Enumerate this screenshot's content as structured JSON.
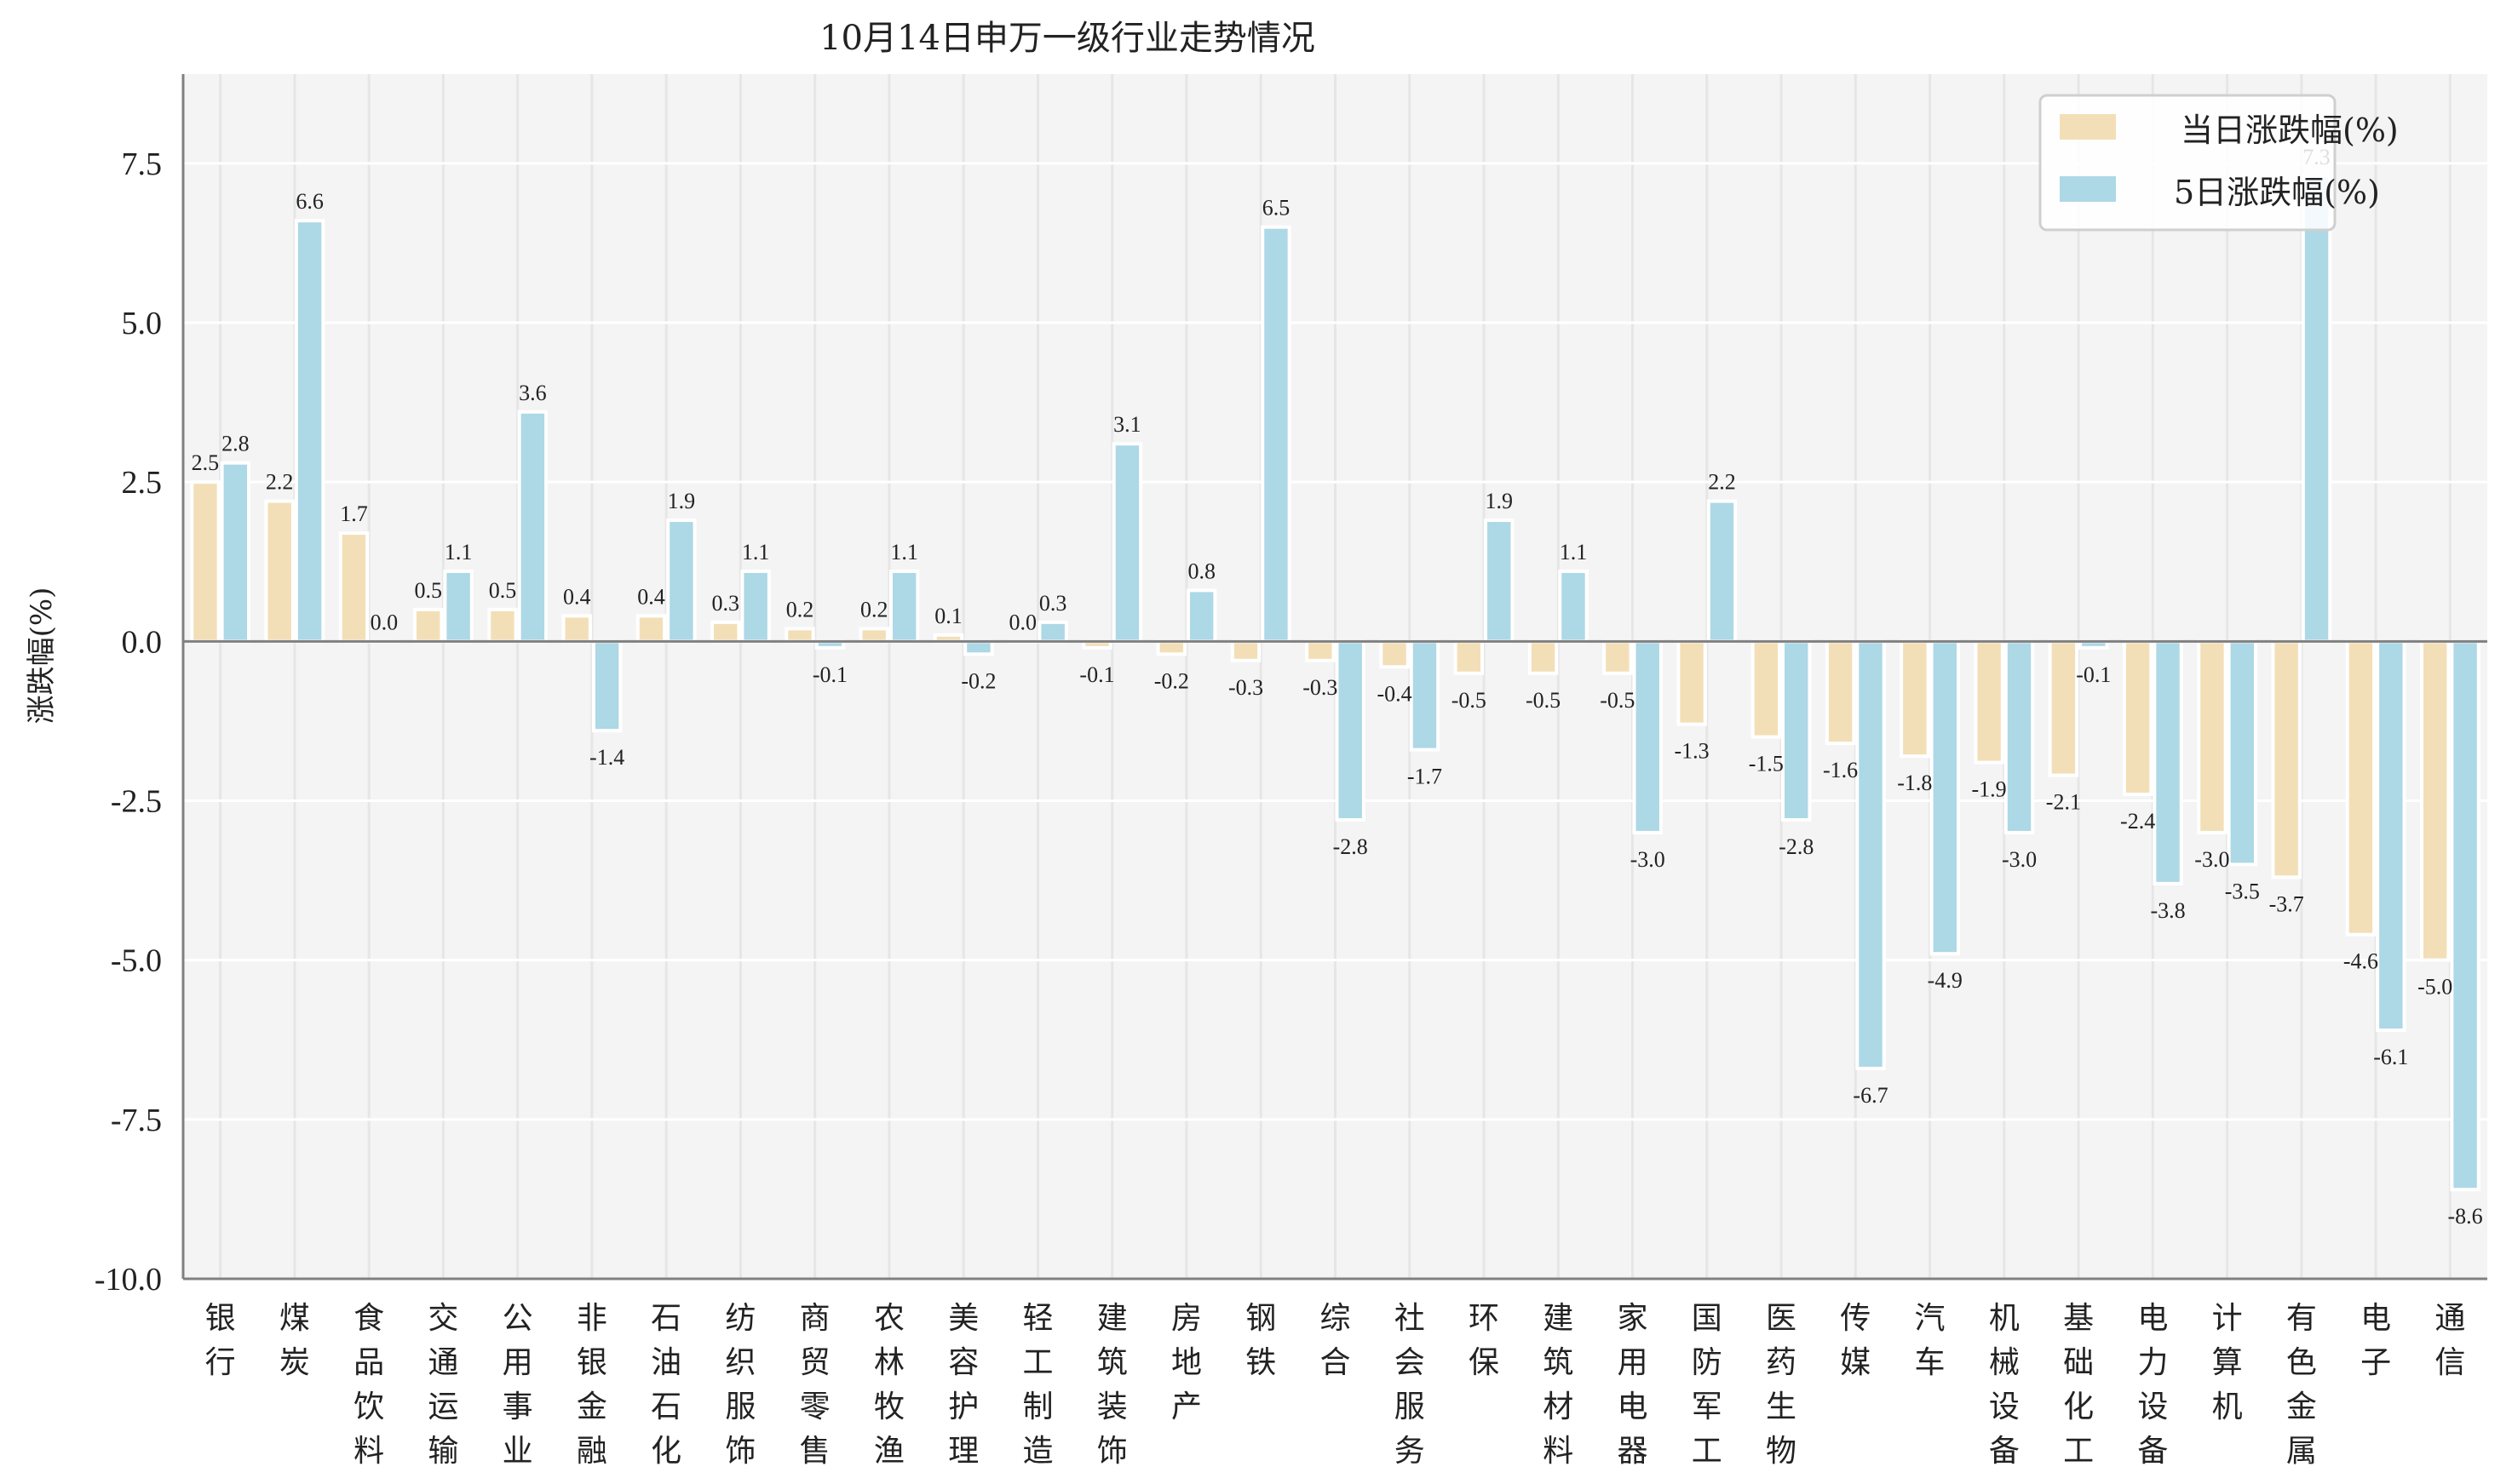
{
  "chart_data": {
    "type": "bar",
    "title": "10月14日申万一级行业走势情况",
    "xlabel": "",
    "ylabel": "涨跌幅(%)",
    "ylim": [
      -10.0,
      8.9
    ],
    "yticks": [
      -10.0,
      -7.5,
      -5.0,
      -2.5,
      0.0,
      2.5,
      5.0,
      7.5
    ],
    "ytick_labels": [
      "-10.0",
      "-7.5",
      "-5.0",
      "-2.5",
      "0.0",
      "2.5",
      "5.0",
      "7.5"
    ],
    "grid": true,
    "legend_position": "top-right",
    "categories": [
      "银行",
      "煤炭",
      "食品饮料",
      "交通运输",
      "公用事业",
      "非银金融",
      "石油石化",
      "纺织服饰",
      "商贸零售",
      "农林牧渔",
      "美容护理",
      "轻工制造",
      "建筑装饰",
      "房地产",
      "钢铁",
      "综合",
      "社会服务",
      "环保",
      "建筑材料",
      "家用电器",
      "国防军工",
      "医药生物",
      "传媒",
      "汽车",
      "机械设备",
      "基础化工",
      "电力设备",
      "计算机",
      "有色金属",
      "电子",
      "通信"
    ],
    "series": [
      {
        "name": "当日涨跌幅(%)",
        "color": "#f3dfb7",
        "values": [
          2.5,
          2.2,
          1.7,
          0.5,
          0.5,
          0.4,
          0.4,
          0.3,
          0.2,
          0.2,
          0.1,
          0.0,
          -0.1,
          -0.2,
          -0.3,
          -0.3,
          -0.4,
          -0.5,
          -0.5,
          -0.5,
          -1.3,
          -1.5,
          -1.6,
          -1.8,
          -1.9,
          -2.1,
          -2.4,
          -3.0,
          -3.7,
          -4.6,
          -5.0
        ]
      },
      {
        "name": "5日涨跌幅(%)",
        "color": "#add8e6",
        "values": [
          2.8,
          6.6,
          0.0,
          1.1,
          3.6,
          -1.4,
          1.9,
          1.1,
          -0.1,
          1.1,
          -0.2,
          0.3,
          3.1,
          0.8,
          6.5,
          -2.8,
          -1.7,
          1.9,
          1.1,
          -3.0,
          2.2,
          -2.8,
          -6.7,
          -4.9,
          -3.0,
          -0.1,
          -3.8,
          -3.5,
          7.3,
          -6.1,
          -8.6
        ]
      }
    ]
  }
}
